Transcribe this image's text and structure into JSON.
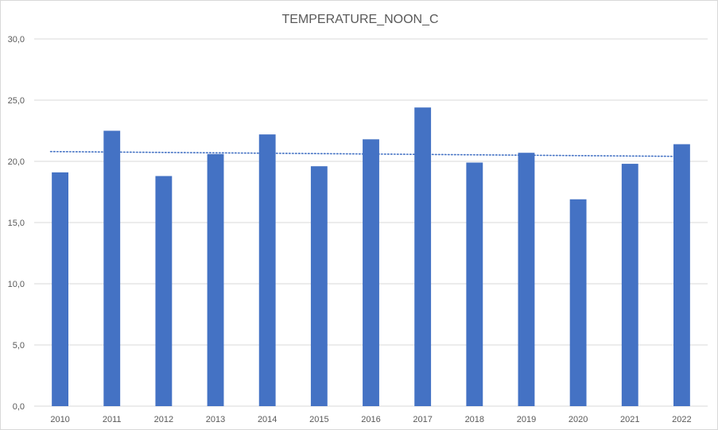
{
  "chart_data": {
    "type": "bar",
    "title": "TEMPERATURE_NOON_C",
    "xlabel": "",
    "ylabel": "",
    "categories": [
      "2010",
      "2011",
      "2012",
      "2013",
      "2014",
      "2015",
      "2016",
      "2017",
      "2018",
      "2019",
      "2020",
      "2021",
      "2022"
    ],
    "values": [
      19.1,
      22.5,
      18.8,
      20.6,
      22.2,
      19.6,
      21.8,
      24.4,
      19.9,
      20.7,
      16.9,
      19.8,
      21.4
    ],
    "ylim": [
      0,
      30
    ],
    "yticks": [
      0,
      5,
      10,
      15,
      20,
      25,
      30
    ],
    "ytick_labels": [
      "0,0",
      "5,0",
      "10,0",
      "15,0",
      "20,0",
      "25,0",
      "30,0"
    ],
    "grid": true,
    "legend": "none",
    "trendline": {
      "type": "linear",
      "style": "dotted",
      "start": 20.8,
      "end": 20.4
    },
    "colors": {
      "bar": "#4472c4",
      "trendline": "#4472c4",
      "grid": "#d9d9d9",
      "text": "#595959"
    }
  }
}
